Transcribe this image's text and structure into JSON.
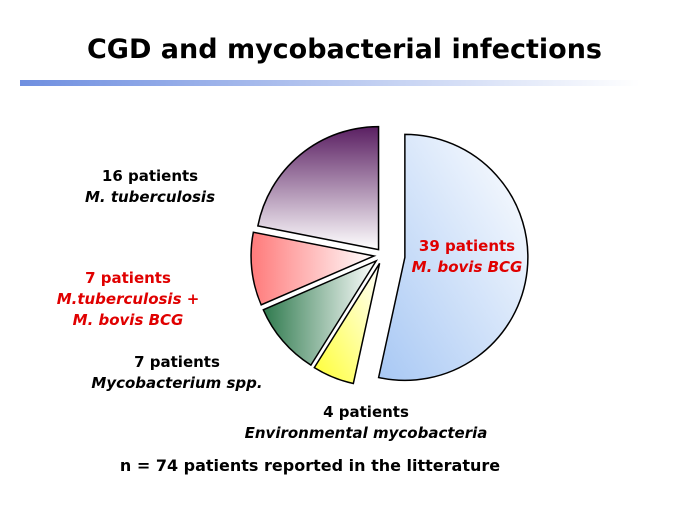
{
  "chart_data": {
    "type": "pie",
    "title": "CGD and mycobacterial infections",
    "categories": [
      "M. bovis BCG",
      "Environmental mycobacteria",
      "M.tuberculosis + M. bovis BCG",
      "Mycobacterium spp.",
      "M. tuberculosis"
    ],
    "values": [
      39,
      4,
      7,
      7,
      16
    ],
    "value_labels": [
      "39 patients",
      "4 patients",
      "7 patients",
      "7 patients",
      "16 patients"
    ],
    "colors": [
      "#a8c8f4",
      "#ffff33",
      "#2f7a4e",
      "#ff7a7a",
      "#5a1f62"
    ],
    "label_colors": [
      "#e00000",
      "#000000",
      "#e00000",
      "#000000",
      "#000000"
    ],
    "annotation": "n = 74 patients reported in the litterature"
  }
}
